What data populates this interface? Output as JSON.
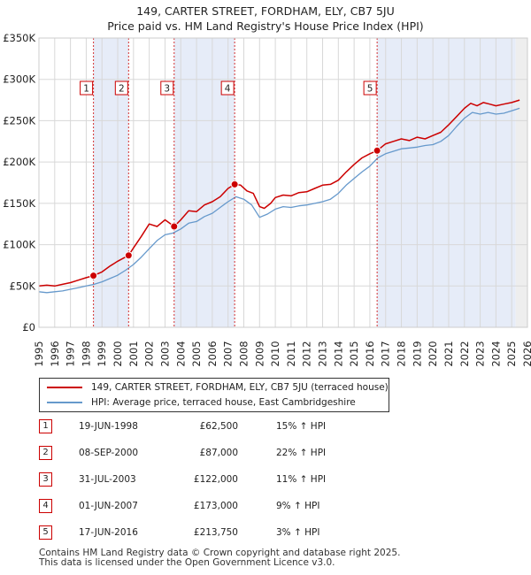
{
  "chart_data": {
    "type": "line",
    "title": "149, CARTER STREET, FORDHAM, ELY, CB7 5JU",
    "subtitle": "Price paid vs. HM Land Registry's House Price Index (HPI)",
    "xlim": [
      1995,
      2026
    ],
    "ylim": [
      0,
      350000
    ],
    "y_ticks": [
      0,
      50000,
      100000,
      150000,
      200000,
      250000,
      300000,
      350000
    ],
    "y_tick_labels": [
      "£0",
      "£50K",
      "£100K",
      "£150K",
      "£200K",
      "£250K",
      "£300K",
      "£350K"
    ],
    "x_ticks": [
      1995,
      1996,
      1997,
      1998,
      1999,
      2000,
      2001,
      2002,
      2003,
      2004,
      2005,
      2006,
      2007,
      2008,
      2009,
      2010,
      2011,
      2012,
      2013,
      2014,
      2015,
      2016,
      2017,
      2018,
      2019,
      2020,
      2021,
      2022,
      2023,
      2024,
      2025,
      2026
    ],
    "x_tick_labels": [
      "1995",
      "1996",
      "1997",
      "1998",
      "1999",
      "2000",
      "2001",
      "2002",
      "2003",
      "2004",
      "2005",
      "2006",
      "2007",
      "2008",
      "2009",
      "2010",
      "2011",
      "2012",
      "2013",
      "2014",
      "2015",
      "2016",
      "2017",
      "2018",
      "2019",
      "2020",
      "2021",
      "2022",
      "2023",
      "2024",
      "2025",
      "2026"
    ],
    "grid": true,
    "shaded_periods": [
      [
        1998.46,
        2000.69
      ],
      [
        2003.58,
        2007.42
      ],
      [
        2016.46,
        2025.25
      ]
    ],
    "series": [
      {
        "name": "149, CARTER STREET, FORDHAM, ELY, CB7 5JU (terraced house)",
        "color": "#cc0000",
        "x": [
          1995.0,
          1995.5,
          1996.0,
          1996.5,
          1997.0,
          1997.5,
          1998.0,
          1998.46,
          1999.0,
          1999.5,
          2000.0,
          2000.69,
          2001.0,
          2001.5,
          2002.0,
          2002.5,
          2003.0,
          2003.58,
          2004.0,
          2004.5,
          2005.0,
          2005.5,
          2006.0,
          2006.5,
          2007.0,
          2007.42,
          2007.8,
          2008.2,
          2008.6,
          2009.0,
          2009.3,
          2009.7,
          2010.0,
          2010.5,
          2011.0,
          2011.5,
          2012.0,
          2012.5,
          2013.0,
          2013.5,
          2014.0,
          2014.5,
          2015.0,
          2015.5,
          2016.0,
          2016.46,
          2017.0,
          2017.5,
          2018.0,
          2018.5,
          2019.0,
          2019.5,
          2020.0,
          2020.5,
          2021.0,
          2021.5,
          2022.0,
          2022.4,
          2022.8,
          2023.2,
          2023.6,
          2024.0,
          2024.5,
          2025.0,
          2025.5
        ],
        "values": [
          50000,
          51000,
          50000,
          52000,
          54000,
          57000,
          60000,
          62500,
          67000,
          74000,
          80000,
          87000,
          96000,
          110000,
          125000,
          122000,
          130000,
          122000,
          130000,
          141000,
          140000,
          148000,
          152000,
          158000,
          168000,
          173000,
          172000,
          165000,
          162000,
          146000,
          144000,
          150000,
          157000,
          160000,
          159000,
          163000,
          164000,
          168000,
          172000,
          173000,
          178000,
          188000,
          197000,
          205000,
          210000,
          213750,
          222000,
          225000,
          228000,
          226000,
          230000,
          228000,
          232000,
          236000,
          245000,
          255000,
          265000,
          271000,
          268000,
          272000,
          270000,
          268000,
          270000,
          272000,
          275000
        ]
      },
      {
        "name": "HPI: Average price, terraced house, East Cambridgeshire",
        "color": "#6699cc",
        "x": [
          1995.0,
          1995.5,
          1996.0,
          1996.5,
          1997.0,
          1997.5,
          1998.0,
          1998.5,
          1999.0,
          1999.5,
          2000.0,
          2000.5,
          2001.0,
          2001.5,
          2002.0,
          2002.5,
          2003.0,
          2003.5,
          2004.0,
          2004.5,
          2005.0,
          2005.5,
          2006.0,
          2006.5,
          2007.0,
          2007.5,
          2008.0,
          2008.5,
          2009.0,
          2009.5,
          2010.0,
          2010.5,
          2011.0,
          2011.5,
          2012.0,
          2012.5,
          2013.0,
          2013.5,
          2014.0,
          2014.5,
          2015.0,
          2015.5,
          2016.0,
          2016.5,
          2017.0,
          2017.5,
          2018.0,
          2018.5,
          2019.0,
          2019.5,
          2020.0,
          2020.5,
          2021.0,
          2021.5,
          2022.0,
          2022.5,
          2023.0,
          2023.5,
          2024.0,
          2024.5,
          2025.0,
          2025.5
        ],
        "values": [
          43000,
          42000,
          43000,
          44000,
          46000,
          48000,
          50000,
          52000,
          55000,
          59000,
          63000,
          69000,
          76000,
          85000,
          95000,
          105000,
          112000,
          114000,
          119000,
          126000,
          128000,
          134000,
          138000,
          145000,
          152000,
          158000,
          155000,
          148000,
          133000,
          137000,
          143000,
          146000,
          145000,
          147000,
          148000,
          150000,
          152000,
          155000,
          162000,
          172000,
          180000,
          188000,
          195000,
          205000,
          210000,
          213000,
          216000,
          217000,
          218000,
          220000,
          221000,
          225000,
          232000,
          243000,
          253000,
          260000,
          258000,
          260000,
          258000,
          259000,
          262000,
          265000
        ]
      }
    ],
    "sales": [
      {
        "n": "1",
        "x": 1998.46,
        "y": 62500
      },
      {
        "n": "2",
        "x": 2000.69,
        "y": 87000
      },
      {
        "n": "3",
        "x": 2003.58,
        "y": 122000
      },
      {
        "n": "4",
        "x": 2007.42,
        "y": 173000
      },
      {
        "n": "5",
        "x": 2016.46,
        "y": 213750
      }
    ]
  },
  "legend": {
    "property_label": "149, CARTER STREET, FORDHAM, ELY, CB7 5JU (terraced house)",
    "hpi_label": "HPI: Average price, terraced house, East Cambridgeshire"
  },
  "sales_table": [
    {
      "n": "1",
      "date": "19-JUN-1998",
      "price": "£62,500",
      "hpi": "15% ↑ HPI"
    },
    {
      "n": "2",
      "date": "08-SEP-2000",
      "price": "£87,000",
      "hpi": "22% ↑ HPI"
    },
    {
      "n": "3",
      "date": "31-JUL-2003",
      "price": "£122,000",
      "hpi": "11% ↑ HPI"
    },
    {
      "n": "4",
      "date": "01-JUN-2007",
      "price": "£173,000",
      "hpi": "9% ↑ HPI"
    },
    {
      "n": "5",
      "date": "17-JUN-2016",
      "price": "£213,750",
      "hpi": "3% ↑ HPI"
    }
  ],
  "footer": {
    "line1": "Contains HM Land Registry data © Crown copyright and database right 2025.",
    "line2": "This data is licensed under the Open Government Licence v3.0."
  }
}
